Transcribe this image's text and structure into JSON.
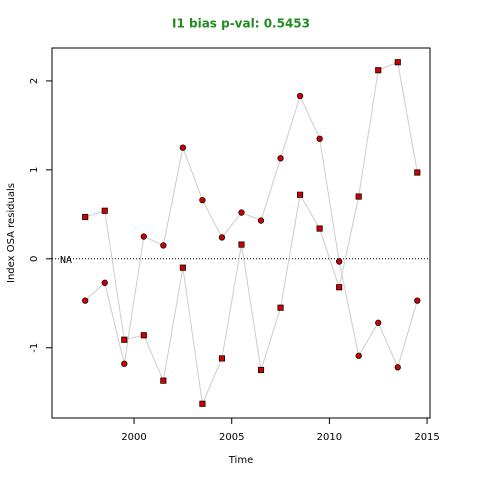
{
  "chart_data": {
    "type": "scatter-line",
    "title": "I1 bias p-val: 0.5453",
    "x_label": "Time",
    "y_label": "Index OSA residuals",
    "annotation": "NA",
    "hline": 0,
    "xlim": [
      1995.8,
      2015.15
    ],
    "ylim": [
      -1.79,
      2.37
    ],
    "xticks": [
      2000,
      2005,
      2010,
      2015
    ],
    "yticks": [
      -1,
      0,
      1,
      2
    ],
    "line_color": "#cccccc",
    "x": [
      1997.5,
      1998.5,
      1999.5,
      2000.5,
      2001.5,
      2002.5,
      2003.5,
      2004.5,
      2005.5,
      2006.5,
      2007.5,
      2008.5,
      2009.5,
      2010.5,
      2011.5,
      2012.5,
      2013.5,
      2014.5
    ],
    "series": [
      {
        "marker": "circle",
        "color": "#cc0000",
        "values": [
          -0.47,
          -0.27,
          -1.18,
          0.25,
          0.15,
          1.25,
          0.66,
          0.24,
          0.52,
          0.43,
          1.13,
          1.83,
          1.35,
          -0.03,
          -1.09,
          -0.72,
          -1.22,
          -0.47
        ]
      },
      {
        "marker": "square",
        "color": "#cc0000",
        "values": [
          0.47,
          0.54,
          -0.91,
          -0.86,
          -1.37,
          -0.1,
          -1.63,
          -1.12,
          0.16,
          -1.25,
          -0.55,
          0.72,
          0.34,
          -0.32,
          0.7,
          2.12,
          2.21,
          0.97
        ]
      }
    ]
  }
}
